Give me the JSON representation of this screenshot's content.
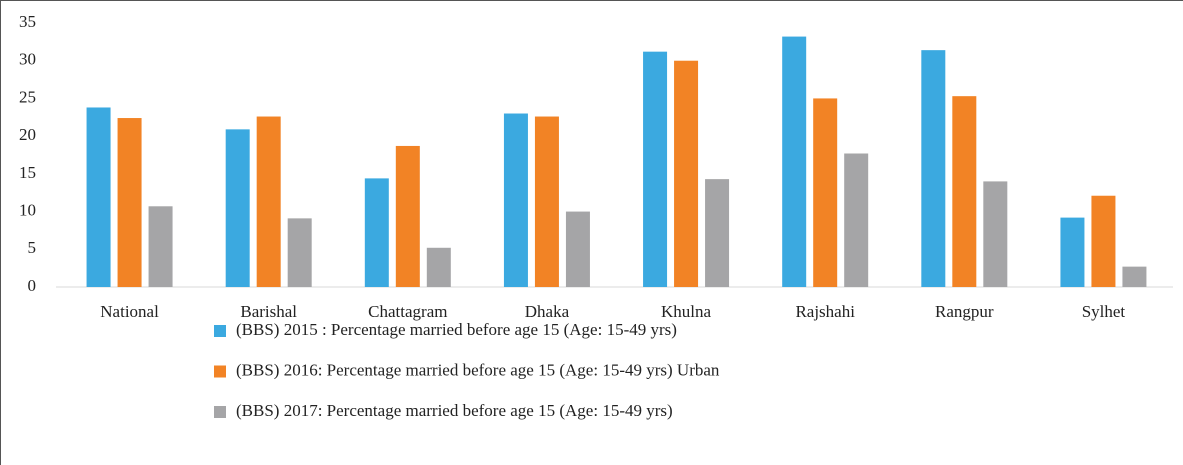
{
  "chart_data": {
    "type": "bar",
    "categories": [
      "National",
      "Barishal",
      "Chattagram",
      "Dhaka",
      "Khulna",
      "Rajshahi",
      "Rangpur",
      "Sylhet"
    ],
    "series": [
      {
        "name": "(BBS) 2015 : Percentage married before age 15 (Age: 15-49 yrs)",
        "color": "#3ba9e0",
        "values": [
          23.8,
          20.9,
          14.4,
          23.0,
          31.2,
          33.2,
          31.4,
          9.2
        ]
      },
      {
        "name": "(BBS) 2016: Percentage married before age 15 (Age: 15-49 yrs) Urban",
        "color": "#f28325",
        "values": [
          22.4,
          22.6,
          18.7,
          22.6,
          30.0,
          25.0,
          25.3,
          12.1
        ]
      },
      {
        "name": "(BBS) 2017: Percentage married before age 15 (Age: 15-49 yrs)",
        "color": "#a5a5a7",
        "values": [
          10.7,
          9.1,
          5.2,
          10.0,
          14.3,
          17.7,
          14.0,
          2.7
        ]
      }
    ],
    "ylim": [
      0,
      35
    ],
    "yticks": [
      0,
      5,
      10,
      15,
      20,
      25,
      30,
      35
    ],
    "grid": false,
    "legend": "bottom"
  }
}
